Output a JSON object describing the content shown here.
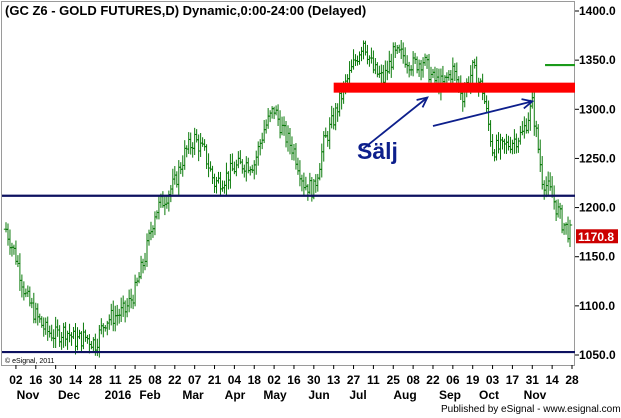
{
  "title": "(GC Z6 - GOLD FUTURES,D) Dynamic,0:00-24:00 (Delayed)",
  "copyright": "© eSignal, 2011",
  "publisher": "Published by eSignal - www.esignal.com",
  "annotation": {
    "text": "Sälj",
    "color": "#0d1f8c"
  },
  "last_price": {
    "text": "1170.8",
    "value": 1170.8,
    "color": "#cc0000"
  },
  "colors": {
    "bars": "#0a7a0a",
    "support_line": "#0d1160",
    "resistance_zone": "#ff0000",
    "target_line": "#1a9a1a",
    "arrow": "#0d1f8c"
  },
  "chart_data": {
    "type": "ohlc",
    "title": "(GC Z6 - GOLD FUTURES,D) Dynamic,0:00-24:00 (Delayed)",
    "ylim": [
      1040,
      1410
    ],
    "y_ticks": [
      "1050.0",
      "1100.0",
      "1150.0",
      "1200.0",
      "1250.0",
      "1300.0",
      "1350.0",
      "1400.0"
    ],
    "x_ticks": [
      "02",
      "16",
      "30",
      "14",
      "28",
      "11",
      "25",
      "08",
      "22",
      "07",
      "21",
      "04",
      "18",
      "02",
      "16",
      "30",
      "13",
      "27",
      "11",
      "25",
      "08",
      "22",
      "06",
      "19",
      "03",
      "17",
      "31",
      "14",
      "28"
    ],
    "x_month_labels": [
      "Nov",
      "Dec",
      "2016",
      "Feb",
      "Mar",
      "Apr",
      "May",
      "Jun",
      "Jul",
      "Aug",
      "Sep",
      "Oct",
      "Nov"
    ],
    "series": [
      {
        "values": [
          {
            "d": "2015-10-26",
            "c": 1178
          },
          {
            "d": "2015-11-02",
            "c": 1150
          },
          {
            "d": "2015-11-09",
            "c": 1110
          },
          {
            "d": "2015-11-16",
            "c": 1090
          },
          {
            "d": "2015-11-23",
            "c": 1075
          },
          {
            "d": "2015-11-30",
            "c": 1070
          },
          {
            "d": "2015-12-07",
            "c": 1075
          },
          {
            "d": "2015-12-14",
            "c": 1065
          },
          {
            "d": "2015-12-21",
            "c": 1068
          },
          {
            "d": "2015-12-28",
            "c": 1062
          },
          {
            "d": "2016-01-04",
            "c": 1085
          },
          {
            "d": "2016-01-11",
            "c": 1090
          },
          {
            "d": "2016-01-18",
            "c": 1095
          },
          {
            "d": "2016-01-25",
            "c": 1115
          },
          {
            "d": "2016-02-01",
            "c": 1150
          },
          {
            "d": "2016-02-08",
            "c": 1195
          },
          {
            "d": "2016-02-15",
            "c": 1210
          },
          {
            "d": "2016-02-22",
            "c": 1225
          },
          {
            "d": "2016-02-29",
            "c": 1255
          },
          {
            "d": "2016-03-07",
            "c": 1270
          },
          {
            "d": "2016-03-14",
            "c": 1255
          },
          {
            "d": "2016-03-21",
            "c": 1225
          },
          {
            "d": "2016-03-28",
            "c": 1230
          },
          {
            "d": "2016-04-04",
            "c": 1240
          },
          {
            "d": "2016-04-11",
            "c": 1245
          },
          {
            "d": "2016-04-18",
            "c": 1245
          },
          {
            "d": "2016-04-25",
            "c": 1280
          },
          {
            "d": "2016-05-02",
            "c": 1300
          },
          {
            "d": "2016-05-09",
            "c": 1275
          },
          {
            "d": "2016-05-16",
            "c": 1258
          },
          {
            "d": "2016-05-23",
            "c": 1225
          },
          {
            "d": "2016-05-30",
            "c": 1218
          },
          {
            "d": "2016-06-06",
            "c": 1265
          },
          {
            "d": "2016-06-13",
            "c": 1290
          },
          {
            "d": "2016-06-20",
            "c": 1320
          },
          {
            "d": "2016-06-27",
            "c": 1345
          },
          {
            "d": "2016-07-04",
            "c": 1370
          },
          {
            "d": "2016-07-11",
            "c": 1340
          },
          {
            "d": "2016-07-18",
            "c": 1330
          },
          {
            "d": "2016-07-25",
            "c": 1355
          },
          {
            "d": "2016-08-01",
            "c": 1355
          },
          {
            "d": "2016-08-08",
            "c": 1345
          },
          {
            "d": "2016-08-15",
            "c": 1350
          },
          {
            "d": "2016-08-22",
            "c": 1330
          },
          {
            "d": "2016-08-29",
            "c": 1325
          },
          {
            "d": "2016-09-05",
            "c": 1340
          },
          {
            "d": "2016-09-12",
            "c": 1315
          },
          {
            "d": "2016-09-19",
            "c": 1340
          },
          {
            "d": "2016-09-26",
            "c": 1320
          },
          {
            "d": "2016-10-03",
            "c": 1260
          },
          {
            "d": "2016-10-10",
            "c": 1260
          },
          {
            "d": "2016-10-17",
            "c": 1268
          },
          {
            "d": "2016-10-24",
            "c": 1275
          },
          {
            "d": "2016-10-31",
            "c": 1305
          },
          {
            "d": "2016-11-07",
            "c": 1230
          },
          {
            "d": "2016-11-14",
            "c": 1212
          },
          {
            "d": "2016-11-21",
            "c": 1185
          },
          {
            "d": "2016-11-28",
            "c": 1170.8
          }
        ]
      }
    ],
    "horizontal_lines": [
      {
        "y": 1212,
        "color": "#0d1160",
        "style": "support"
      },
      {
        "y": 1053,
        "color": "#0d1160",
        "style": "support"
      },
      {
        "y": 1322,
        "color": "#ff0000",
        "style": "resistance-zone"
      },
      {
        "y": 1345,
        "color": "#1a9a1a",
        "style": "target",
        "from": "2016-11-09"
      }
    ],
    "arrows": [
      {
        "from": {
          "d": "2016-07-04",
          "y": 1260
        },
        "to": {
          "d": "2016-08-18",
          "y": 1312
        }
      },
      {
        "from": {
          "d": "2016-08-22",
          "y": 1283
        },
        "to": {
          "d": "2016-10-31",
          "y": 1308
        }
      }
    ],
    "grid": false
  }
}
